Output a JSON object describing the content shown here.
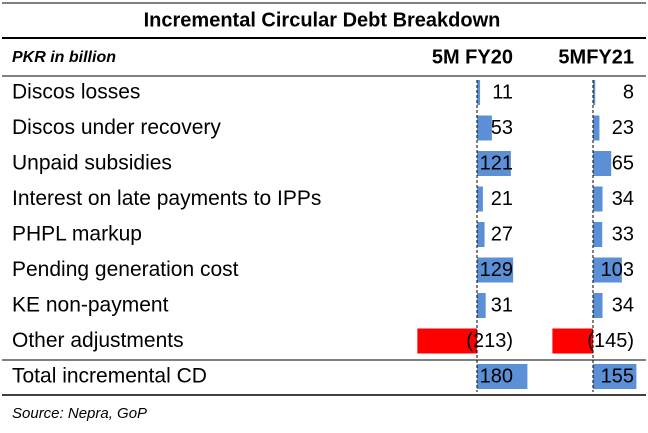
{
  "chart_data": {
    "type": "table-bar",
    "title": "Incremental Circular Debt Breakdown",
    "unit_label": "PKR in billion",
    "categories": [
      "Discos losses",
      "Discos under recovery",
      "Unpaid subsidies",
      "Interest on late payments to IPPs",
      "PHPL markup",
      "Pending generation cost",
      "KE non-payment",
      "Other adjustments",
      "Total incremental CD"
    ],
    "series": [
      {
        "name": "5M FY20",
        "color": "#5b8fd6",
        "negative_color": "#ff0000",
        "values": [
          11,
          53,
          121,
          21,
          27,
          129,
          31,
          -213,
          180
        ],
        "value_labels": [
          "11",
          "53",
          "121",
          "21",
          "27",
          "129",
          "31",
          "(213)",
          "180"
        ]
      },
      {
        "name": "5MFY21",
        "color": "#5b8fd6",
        "negative_color": "#ff0000",
        "values": [
          8,
          23,
          65,
          34,
          33,
          103,
          34,
          -145,
          155
        ],
        "value_labels": [
          "8",
          "23",
          "65",
          "34",
          "33",
          "103",
          "34",
          "(145)",
          "155"
        ]
      }
    ],
    "source": "Source: Nepra, GoP"
  }
}
